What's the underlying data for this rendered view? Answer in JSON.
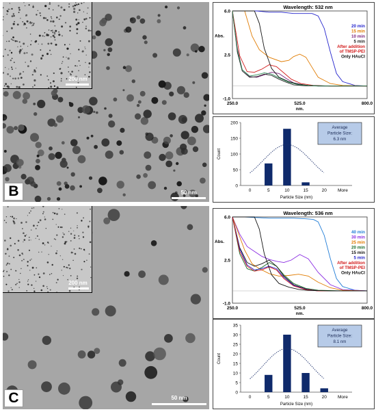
{
  "figure": {
    "panel_b": {
      "letter": "B",
      "tem": {
        "scale_label": "50 nm",
        "inset_scale_label": "200 nm"
      },
      "uvvis": {
        "type": "line",
        "title": "Wavelength: 532 nm",
        "ylabel": "Abs.",
        "xlabel": "nm.",
        "x_ticks": [
          "250.0",
          "525.0",
          "800.0"
        ],
        "y_ticks": [
          "6.0",
          "2.5",
          "-1.0"
        ],
        "xlim": [
          250,
          800
        ],
        "ylim": [
          -1,
          6
        ],
        "legend": [
          {
            "label": "20 min",
            "color": "#2222cc"
          },
          {
            "label": "15 min",
            "color": "#e07b00"
          },
          {
            "label": "10 min",
            "color": "#7a1f7a"
          },
          {
            "label": "5 min",
            "color": "#222222"
          },
          {
            "label": "After addition of TMSP-PEI",
            "color": "#d21a1a"
          },
          {
            "label": "Only HAuCl",
            "color": "#111111"
          }
        ],
        "series": [
          {
            "name": "20 min",
            "color": "#2222cc",
            "x": [
              250,
              275,
              300,
              325,
              350,
              400,
              450,
              500,
              550,
              575,
              600,
              625,
              650,
              675,
              700,
              750,
              800
            ],
            "y": [
              6,
              6,
              6,
              6,
              6,
              5.9,
              5.9,
              5.8,
              5.8,
              5.8,
              5.6,
              4.6,
              2.7,
              1.0,
              0.35,
              0.05,
              0.0
            ]
          },
          {
            "name": "15 min",
            "color": "#e07b00",
            "x": [
              250,
              300,
              330,
              360,
              400,
              450,
              480,
              500,
              525,
              550,
              575,
              600,
              650,
              700,
              800
            ],
            "y": [
              6,
              6,
              4.0,
              2.9,
              2.3,
              1.95,
              2.05,
              2.35,
              2.55,
              2.3,
              1.5,
              0.7,
              0.2,
              0.05,
              0.0
            ]
          },
          {
            "name": "10 min",
            "color": "#7a1f7a",
            "x": [
              250,
              270,
              290,
              320,
              350,
              380,
              410,
              440,
              470,
              500,
              550,
              600,
              700,
              800
            ],
            "y": [
              6,
              3.0,
              1.3,
              0.75,
              0.7,
              0.9,
              1.1,
              1.0,
              0.6,
              0.25,
              0.05,
              0.0,
              0.0,
              0.0
            ]
          },
          {
            "name": "5 min",
            "color": "#222222",
            "x": [
              250,
              270,
              290,
              320,
              350,
              380,
              410,
              440,
              470,
              500,
              550,
              600,
              800
            ],
            "y": [
              6,
              2.7,
              1.2,
              0.7,
              0.75,
              0.95,
              0.85,
              0.55,
              0.3,
              0.1,
              0.02,
              0.0,
              0.0
            ]
          },
          {
            "name": "After addition of TMSP-PEI",
            "color": "#d21a1a",
            "x": [
              250,
              280,
              310,
              340,
              370,
              400,
              430,
              460,
              490,
              530,
              580,
              650,
              800
            ],
            "y": [
              6,
              2.4,
              1.15,
              1.1,
              1.35,
              1.7,
              1.55,
              1.05,
              0.55,
              0.2,
              0.05,
              0.0,
              0.0
            ]
          },
          {
            "name": "Only HAuCl",
            "color": "#111111",
            "x": [
              250,
              300,
              340,
              360,
              380,
              410,
              440,
              480,
              520,
              560,
              650,
              800
            ],
            "y": [
              6,
              6,
              6,
              5.0,
              3.0,
              1.4,
              0.7,
              0.35,
              0.15,
              0.05,
              0.0,
              0.0
            ]
          },
          {
            "name": "green",
            "color": "#2e8b57",
            "x": [
              250,
              270,
              290,
              320,
              350,
              380,
              410,
              440,
              480,
              520,
              600,
              800
            ],
            "y": [
              6,
              2.9,
              1.3,
              0.8,
              0.9,
              1.05,
              0.95,
              0.65,
              0.3,
              0.1,
              0.0,
              0.0
            ]
          }
        ]
      },
      "histogram": {
        "type": "bar",
        "categories": [
          "0",
          "5",
          "10",
          "15",
          "20",
          "More"
        ],
        "values": [
          0,
          70,
          180,
          10,
          0,
          0
        ],
        "ylim": [
          0,
          200
        ],
        "y_ticks": [
          "0",
          "50",
          "100",
          "150",
          "200"
        ],
        "ylabel": "Count",
        "xlabel": "Particle Size (nm)",
        "info_box": [
          "Average",
          "Particle Size:",
          "6.3 nm"
        ]
      }
    },
    "panel_c": {
      "letter": "C",
      "tem": {
        "scale_label": "50 nm",
        "inset_scale_label": "200 nm"
      },
      "uvvis": {
        "type": "line",
        "title": "Wavelength: 536 nm",
        "ylabel": "Abs.",
        "xlabel": "nm.",
        "x_ticks": [
          "250.0",
          "525.0",
          "800.0"
        ],
        "y_ticks": [
          "6.0",
          "2.5",
          "-1.0"
        ],
        "xlim": [
          250,
          800
        ],
        "ylim": [
          -1,
          6
        ],
        "legend": [
          {
            "label": "40 min",
            "color": "#1e7bd6"
          },
          {
            "label": "30 min",
            "color": "#8a2be2"
          },
          {
            "label": "25 min",
            "color": "#e07b00"
          },
          {
            "label": "20 min",
            "color": "#1a6b2a"
          },
          {
            "label": "15 min",
            "color": "#111111"
          },
          {
            "label": "5 min",
            "color": "#2222cc"
          },
          {
            "label": "After addition of TMSP-PEI",
            "color": "#d21a1a"
          },
          {
            "label": "Only HAuCl",
            "color": "#111111"
          }
        ],
        "series": [
          {
            "name": "40 min",
            "color": "#1e7bd6",
            "x": [
              250,
              300,
              350,
              400,
              450,
              500,
              550,
              580,
              600,
              625,
              650,
              675,
              700,
              750,
              800
            ],
            "y": [
              6,
              6,
              5.95,
              5.9,
              5.9,
              5.9,
              5.85,
              5.8,
              5.6,
              4.5,
              2.6,
              1.0,
              0.35,
              0.05,
              0.0
            ]
          },
          {
            "name": "30 min",
            "color": "#8a2be2",
            "x": [
              250,
              280,
              310,
              340,
              370,
              400,
              430,
              460,
              490,
              525,
              560,
              600,
              650,
              700,
              800
            ],
            "y": [
              6,
              4.6,
              3.6,
              3.2,
              2.8,
              2.55,
              2.4,
              2.3,
              2.5,
              2.95,
              2.6,
              1.5,
              0.5,
              0.1,
              0.0
            ]
          },
          {
            "name": "25 min",
            "color": "#e07b00",
            "x": [
              250,
              300,
              330,
              360,
              400,
              440,
              480,
              520,
              560,
              600,
              650,
              700,
              800
            ],
            "y": [
              6,
              3.3,
              2.2,
              1.8,
              1.4,
              1.2,
              1.25,
              1.35,
              1.2,
              0.7,
              0.25,
              0.05,
              0.0
            ]
          },
          {
            "name": "20 min",
            "color": "#1a6b2a",
            "x": [
              250,
              280,
              310,
              340,
              370,
              400,
              430,
              460,
              500,
              550,
              600,
              700,
              800
            ],
            "y": [
              6,
              3.0,
              1.8,
              1.6,
              1.9,
              2.3,
              2.0,
              1.3,
              0.6,
              0.2,
              0.05,
              0.0,
              0.0
            ]
          },
          {
            "name": "15 min",
            "color": "#111111",
            "x": [
              250,
              280,
              310,
              340,
              370,
              400,
              430,
              460,
              500,
              550,
              600,
              800
            ],
            "y": [
              6,
              3.5,
              2.3,
              2.0,
              2.2,
              2.5,
              2.0,
              1.2,
              0.5,
              0.15,
              0.0,
              0.0
            ]
          },
          {
            "name": "5 min",
            "color": "#2222cc",
            "x": [
              250,
              280,
              310,
              340,
              370,
              400,
              430,
              460,
              500,
              550,
              600,
              800
            ],
            "y": [
              6,
              3.4,
              2.1,
              1.7,
              1.8,
              2.0,
              1.8,
              1.1,
              0.45,
              0.12,
              0.0,
              0.0
            ]
          },
          {
            "name": "After addition of TMSP-PEI",
            "color": "#d21a1a",
            "x": [
              250,
              280,
              310,
              340,
              370,
              400,
              430,
              460,
              500,
              550,
              600,
              800
            ],
            "y": [
              6,
              3.2,
              2.0,
              1.6,
              1.7,
              1.95,
              1.7,
              1.0,
              0.4,
              0.1,
              0.0,
              0.0
            ]
          },
          {
            "name": "Only HAuCl",
            "color": "#111111",
            "x": [
              250,
              300,
              340,
              360,
              380,
              410,
              440,
              480,
              520,
              560,
              650,
              800
            ],
            "y": [
              6,
              6,
              6,
              5.0,
              3.0,
              1.3,
              0.6,
              0.3,
              0.12,
              0.04,
              0.0,
              0.0
            ]
          }
        ]
      },
      "histogram": {
        "type": "bar",
        "categories": [
          "0",
          "5",
          "10",
          "15",
          "20",
          "More"
        ],
        "values": [
          0,
          9,
          30,
          10,
          2,
          0
        ],
        "ylim": [
          0,
          35
        ],
        "y_ticks": [
          "0",
          "5",
          "10",
          "15",
          "20",
          "25",
          "30",
          "35"
        ],
        "ylabel": "Count",
        "xlabel": "Particle Size (nm)",
        "info_box": [
          "Average",
          "Particle Size:",
          "8.1 nm"
        ]
      }
    }
  }
}
